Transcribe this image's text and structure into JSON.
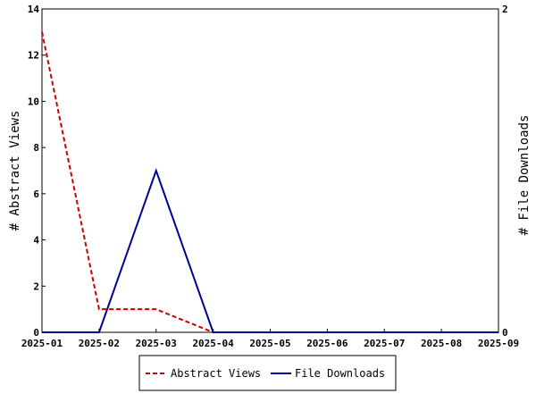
{
  "chart_data": {
    "type": "line",
    "x": [
      "2025-01",
      "2025-02",
      "2025-03",
      "2025-04",
      "2025-05",
      "2025-06",
      "2025-07",
      "2025-08",
      "2025-09"
    ],
    "title": "",
    "ylabel": "# Abstract Views",
    "y2label": "# File Downloads",
    "ylim": [
      0,
      14
    ],
    "y2lim": [
      0,
      2
    ],
    "yticks": [
      "0",
      "2",
      "4",
      "6",
      "8",
      "10",
      "12",
      "14"
    ],
    "y2ticks": [
      "0",
      "2"
    ],
    "grid": false,
    "legend_position": "bottom",
    "series": [
      {
        "name": "Abstract Views",
        "axis": "left",
        "color": "#cc0000",
        "style": "dashed",
        "values": [
          13,
          1,
          1,
          0,
          0,
          0,
          0,
          0,
          0
        ]
      },
      {
        "name": "File Downloads",
        "axis": "right",
        "color": "#000099",
        "style": "solid",
        "values": [
          0,
          0,
          1,
          0,
          0,
          0,
          0,
          0,
          0
        ]
      }
    ]
  }
}
